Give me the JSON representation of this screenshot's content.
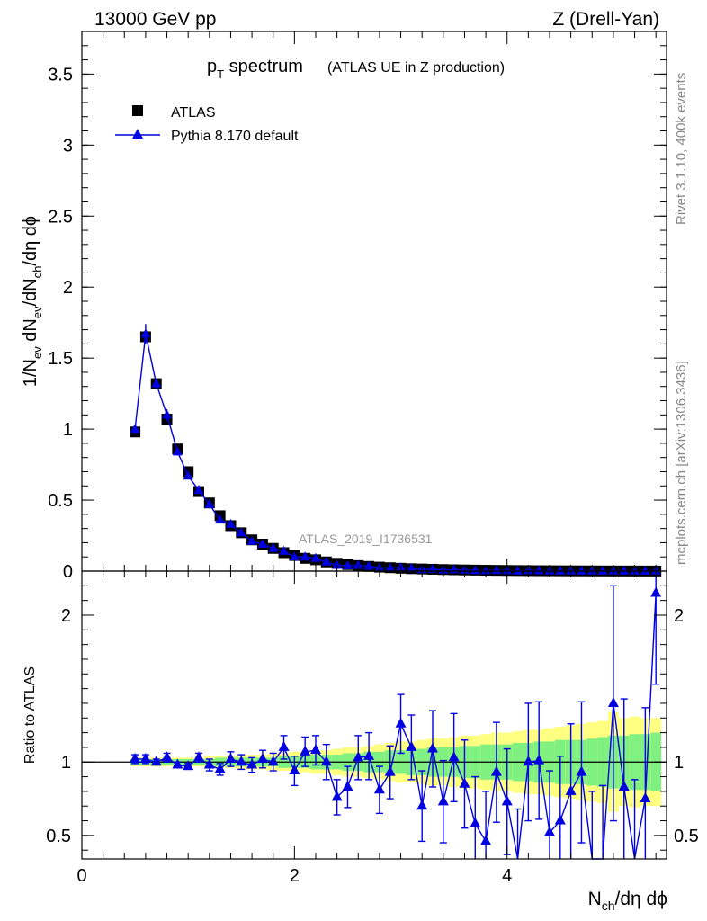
{
  "header": {
    "left": "13000 GeV pp",
    "right": "Z (Drell-Yan)"
  },
  "side_labels": {
    "rivet": "Rivet 3.1.10,  400k events",
    "mcplots": "mcplots.cern.ch [arXiv:1306.3436]"
  },
  "watermark": "ATLAS_2019_I1736531",
  "colors": {
    "data": "#000000",
    "mc": "#0000e0",
    "band_inner": "#80f080",
    "band_outer": "#ffff80"
  },
  "chart_data": [
    {
      "type": "scatter",
      "title_main": "p",
      "title_sub": "T",
      "title_rest": " spectrum",
      "title_suffix": "(ATLAS UE in Z production)",
      "ylabel": "1/N_ev dN_ev/dN_ch/dη dϕ",
      "xlim": [
        0,
        5.5
      ],
      "ylim": [
        0,
        3.8
      ],
      "yticks": [
        "0",
        "0.5",
        "1",
        "1.5",
        "2",
        "2.5",
        "3",
        "3.5"
      ],
      "legend": [
        "ATLAS",
        "Pythia 8.170 default"
      ],
      "legend_position": "top-left",
      "x": [
        0.5,
        0.6,
        0.7,
        0.8,
        0.9,
        1.0,
        1.1,
        1.2,
        1.3,
        1.4,
        1.5,
        1.6,
        1.7,
        1.8,
        1.9,
        2.0,
        2.1,
        2.2,
        2.3,
        2.4,
        2.5,
        2.6,
        2.7,
        2.8,
        2.9,
        3.0,
        3.1,
        3.2,
        3.3,
        3.4,
        3.5,
        3.6,
        3.7,
        3.8,
        3.9,
        4.0,
        4.1,
        4.2,
        4.3,
        4.4,
        4.5,
        4.6,
        4.7,
        4.8,
        4.9,
        5.0,
        5.1,
        5.2,
        5.3,
        5.4
      ],
      "series": [
        {
          "name": "ATLAS",
          "values": [
            0.98,
            1.65,
            1.32,
            1.07,
            0.86,
            0.7,
            0.56,
            0.48,
            0.39,
            0.32,
            0.27,
            0.22,
            0.19,
            0.16,
            0.13,
            0.11,
            0.09,
            0.08,
            0.065,
            0.055,
            0.046,
            0.039,
            0.033,
            0.028,
            0.024,
            0.02,
            0.017,
            0.015,
            0.013,
            0.011,
            0.0095,
            0.0082,
            0.0071,
            0.0061,
            0.0053,
            0.0046,
            0.004,
            0.0035,
            0.003,
            0.0026,
            0.0023,
            0.002,
            0.0017,
            0.0015,
            0.0013,
            0.0011,
            0.001,
            0.0009,
            0.0008,
            0.0007
          ]
        },
        {
          "name": "Pythia 8.170 default",
          "values": [
            1.0,
            1.67,
            1.32,
            1.1,
            0.84,
            0.67,
            0.57,
            0.47,
            0.36,
            0.33,
            0.27,
            0.21,
            0.19,
            0.16,
            0.14,
            0.1,
            0.1,
            0.09,
            0.065,
            0.042,
            0.038,
            0.04,
            0.035,
            0.023,
            0.022,
            0.025,
            0.019,
            0.01,
            0.014,
            0.008,
            0.01,
            0.007,
            0.004,
            0.003,
            0.005,
            0.003,
            0.001,
            0.004,
            0.003,
            0.0013,
            0.0014,
            0.0016,
            0.0008,
            0.0006,
            0.0005,
            0.0015,
            0.0008,
            0.0007,
            0.0006,
            0.0015
          ],
          "errors": [
            0.03,
            0.07,
            0.03,
            0.04,
            0.02,
            0.02,
            0.02,
            0.015,
            0.01,
            0.01,
            0.008,
            0.006,
            0.005,
            0.004,
            0.004,
            0.003,
            0.003,
            0.003,
            0.003,
            0.003,
            0.003,
            0.003,
            0.003,
            0.002,
            0.002,
            0.002,
            0.002,
            0.002,
            0.002,
            0.002,
            0.002,
            0.002,
            0.002,
            0.002,
            0.002,
            0.002,
            0.002,
            0.002,
            0.002,
            0.002,
            0.002,
            0.002,
            0.002,
            0.002,
            0.002,
            0.002,
            0.002,
            0.002,
            0.002,
            0.002
          ]
        }
      ]
    },
    {
      "type": "line",
      "ylabel": "Ratio to ATLAS",
      "xlabel": "N_ch/dη dϕ",
      "xlim": [
        0,
        5.5
      ],
      "ylim": [
        0.34,
        2.3
      ],
      "xticks": [
        "0",
        "2",
        "4"
      ],
      "yticks": [
        "0.5",
        "1",
        "2"
      ],
      "x": [
        0.5,
        0.6,
        0.7,
        0.8,
        0.9,
        1.0,
        1.1,
        1.2,
        1.3,
        1.4,
        1.5,
        1.6,
        1.7,
        1.8,
        1.9,
        2.0,
        2.1,
        2.2,
        2.3,
        2.4,
        2.5,
        2.6,
        2.7,
        2.8,
        2.9,
        3.0,
        3.1,
        3.2,
        3.3,
        3.4,
        3.5,
        3.6,
        3.7,
        3.8,
        3.9,
        4.0,
        4.1,
        4.2,
        4.3,
        4.4,
        4.5,
        4.6,
        4.7,
        4.8,
        4.9,
        5.0,
        5.1,
        5.2,
        5.3,
        5.4
      ],
      "ratio": [
        1.02,
        1.02,
        1.0,
        1.03,
        0.98,
        0.97,
        1.03,
        0.98,
        0.95,
        1.02,
        1.0,
        0.98,
        1.02,
        1.0,
        1.1,
        0.94,
        1.07,
        1.08,
        1.0,
        0.76,
        0.83,
        1.03,
        1.04,
        0.81,
        0.93,
        1.26,
        1.1,
        0.7,
        1.09,
        0.73,
        1.03,
        0.85,
        0.58,
        0.46,
        0.93,
        0.73,
        0.3,
        1.0,
        1.01,
        0.52,
        0.6,
        0.8,
        0.93,
        0.3,
        0.32,
        1.4,
        0.83,
        0.28,
        0.75,
        2.15
      ],
      "ratio_err": [
        0.03,
        0.03,
        0.02,
        0.03,
        0.02,
        0.02,
        0.03,
        0.04,
        0.04,
        0.05,
        0.05,
        0.05,
        0.06,
        0.06,
        0.08,
        0.1,
        0.1,
        0.1,
        0.12,
        0.12,
        0.14,
        0.15,
        0.16,
        0.16,
        0.18,
        0.2,
        0.22,
        0.24,
        0.26,
        0.28,
        0.3,
        0.3,
        0.32,
        0.34,
        0.34,
        0.36,
        0.38,
        0.4,
        0.4,
        0.42,
        0.44,
        0.46,
        0.48,
        0.5,
        0.52,
        0.8,
        0.6,
        0.6,
        0.62,
        0.62
      ],
      "band_inner": [
        0.02,
        0.02,
        0.02,
        0.02,
        0.02,
        0.02,
        0.02,
        0.02,
        0.03,
        0.03,
        0.03,
        0.03,
        0.03,
        0.03,
        0.04,
        0.04,
        0.04,
        0.05,
        0.05,
        0.05,
        0.06,
        0.06,
        0.07,
        0.07,
        0.08,
        0.08,
        0.09,
        0.09,
        0.1,
        0.1,
        0.1,
        0.11,
        0.11,
        0.12,
        0.12,
        0.12,
        0.13,
        0.13,
        0.14,
        0.14,
        0.15,
        0.15,
        0.15,
        0.16,
        0.17,
        0.18,
        0.18,
        0.19,
        0.19,
        0.2
      ],
      "band_outer": [
        0.03,
        0.03,
        0.03,
        0.03,
        0.03,
        0.03,
        0.03,
        0.04,
        0.04,
        0.04,
        0.05,
        0.05,
        0.05,
        0.06,
        0.06,
        0.07,
        0.07,
        0.08,
        0.08,
        0.09,
        0.1,
        0.1,
        0.11,
        0.12,
        0.13,
        0.14,
        0.14,
        0.15,
        0.16,
        0.16,
        0.17,
        0.18,
        0.18,
        0.19,
        0.2,
        0.2,
        0.21,
        0.22,
        0.22,
        0.23,
        0.24,
        0.25,
        0.26,
        0.27,
        0.28,
        0.34,
        0.3,
        0.31,
        0.3,
        0.3
      ]
    }
  ]
}
